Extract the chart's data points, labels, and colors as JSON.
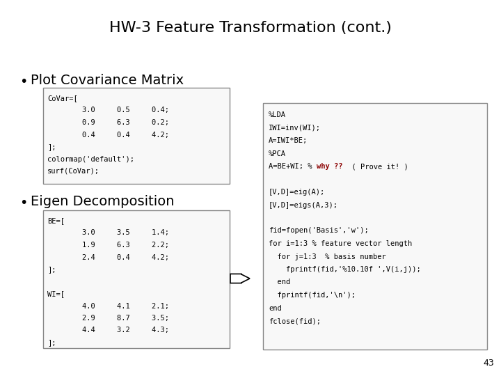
{
  "title": "HW-3 Feature Transformation (cont.)",
  "background_color": "#ffffff",
  "bullet1": "Plot Covariance Matrix",
  "bullet2": "Eigen Decomposition",
  "covar_box": {
    "lines": [
      "CoVar=[",
      "        3.0     0.5     0.4;",
      "        0.9     6.3     0.2;",
      "        0.4     0.4     4.2;",
      "];",
      "colormap('default');",
      "surf(CoVar);"
    ]
  },
  "eigen_box": {
    "lines": [
      "BE=[",
      "        3.0     3.5     1.4;",
      "        1.9     6.3     2.2;",
      "        2.4     0.4     4.2;",
      "];",
      "",
      "WI=[",
      "        4.0     4.1     2.1;",
      "        2.9     8.7     3.5;",
      "        4.4     3.2     4.3;",
      "];"
    ]
  },
  "right_box": {
    "line1_black": "%LDA",
    "line2_black": "IWI=inv(WI);",
    "line3_black": "A=IWI*BE;",
    "line4_black": "%PCA",
    "line5_prefix": "A=BE+WI; % ",
    "line5_red": "why ??",
    "line5_suffix": "  ( Prove it! )",
    "line6_black": "",
    "line7_black": "[V,D]=eig(A);",
    "line8_black": "[V,D]=eigs(A,3);",
    "line9_black": "",
    "line10_black": "fid=fopen('Basis','w');",
    "line11_black": "for i=1:3 % feature vector length",
    "line12_black": "  for j=1:3  % basis number",
    "line13_black": "    fprintf(fid,'%10.10f ',V(i,j));",
    "line14_black": "  end",
    "line15_black": "  fprintf(fid,'\\n');",
    "line16_black": "end",
    "line17_black": "fclose(fid);"
  },
  "page_number": "43",
  "box_edge_color": "#888888",
  "box_face_color": "#f8f8f8",
  "mono_fontsize": 7.5,
  "title_fontsize": 16,
  "bullet_fontsize": 14
}
